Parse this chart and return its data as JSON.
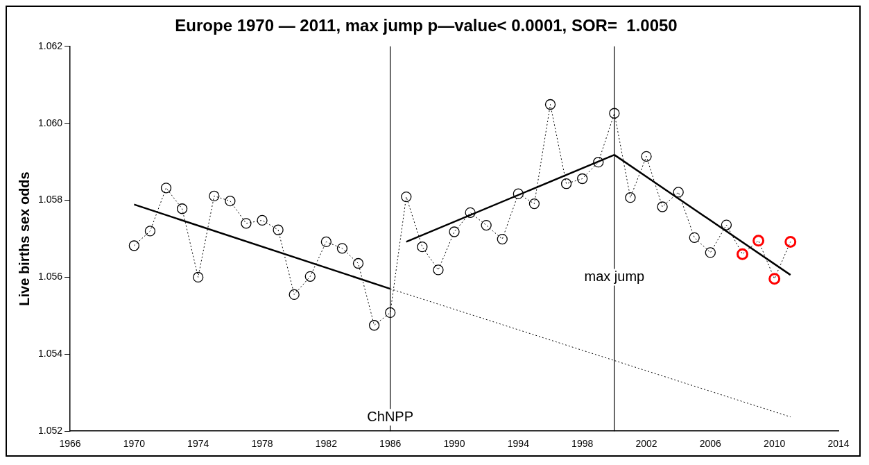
{
  "chart_data": {
    "type": "line",
    "title": "Europe 1970 — 2011, max jump p—value< 0.0001, SOR=  1.0050",
    "ylabel": "Live births sex odds",
    "xlim": [
      1966,
      2014
    ],
    "xticks": [
      1966,
      1970,
      1974,
      1978,
      1982,
      1986,
      1990,
      1994,
      1998,
      2002,
      2006,
      2010,
      2014
    ],
    "ylim": [
      1.052,
      1.062
    ],
    "yticks": [
      {
        "value": 1.052,
        "label": "1.052"
      },
      {
        "value": 1.054,
        "label": "1.054"
      },
      {
        "value": 1.056,
        "label": "1.056"
      },
      {
        "value": 1.058,
        "label": "1.058"
      },
      {
        "value": 1.06,
        "label": "1.060"
      },
      {
        "value": 1.062,
        "label": "1.062"
      }
    ],
    "grid": false,
    "legend": false,
    "ref_lines": [
      {
        "axis": "x",
        "value": 1986,
        "label": "ChNPP",
        "color": "#000000"
      },
      {
        "axis": "x",
        "value": 2000,
        "label": "max jump",
        "color": "#000000"
      }
    ],
    "series": [
      {
        "type": "line",
        "line_style": "dotted",
        "marker": "circle",
        "color": "#000000",
        "x": [
          1970,
          1971,
          1972,
          1973,
          1974,
          1975,
          1976,
          1977,
          1978,
          1979,
          1980,
          1981,
          1982,
          1983,
          1984,
          1985,
          1986,
          1987,
          1988,
          1989,
          1990,
          1991,
          1992,
          1993,
          1994,
          1995,
          1996,
          1997,
          1998,
          1999,
          2000,
          2001,
          2002,
          2003,
          2004,
          2005,
          2006,
          2007,
          2008,
          2009,
          2010,
          2011
        ],
        "values": [
          1.05682,
          1.0572,
          1.05832,
          1.05778,
          1.056,
          1.05811,
          1.05798,
          1.0574,
          1.05748,
          1.05723,
          1.05555,
          1.05602,
          1.05692,
          1.05675,
          1.05636,
          1.05475,
          1.05508,
          1.05809,
          1.05679,
          1.05619,
          1.05718,
          1.05768,
          1.05735,
          1.05699,
          1.05817,
          1.05791,
          1.06049,
          1.05843,
          1.05856,
          1.05899,
          1.06026,
          1.05807,
          1.05914,
          1.05783,
          1.05821,
          1.05703,
          1.05664,
          1.05736,
          1.0566,
          1.05695,
          1.05596,
          1.05692
        ],
        "colors": [
          "#000000",
          "#000000",
          "#000000",
          "#000000",
          "#000000",
          "#000000",
          "#000000",
          "#000000",
          "#000000",
          "#000000",
          "#000000",
          "#000000",
          "#000000",
          "#000000",
          "#000000",
          "#000000",
          "#000000",
          "#000000",
          "#000000",
          "#000000",
          "#000000",
          "#000000",
          "#000000",
          "#000000",
          "#000000",
          "#000000",
          "#000000",
          "#000000",
          "#000000",
          "#000000",
          "#000000",
          "#000000",
          "#000000",
          "#000000",
          "#000000",
          "#000000",
          "#000000",
          "#000000",
          "#ff0000",
          "#ff0000",
          "#ff0000",
          "#ff0000"
        ]
      },
      {
        "type": "line",
        "line_style": "solid",
        "marker": "none",
        "color": "#000000",
        "x": [
          1970,
          1986
        ],
        "values": [
          1.05789,
          1.0557
        ]
      },
      {
        "type": "line",
        "line_style": "solid",
        "marker": "none",
        "color": "#000000",
        "x": [
          1987,
          2000
        ],
        "values": [
          1.05692,
          1.05918
        ]
      },
      {
        "type": "line",
        "line_style": "solid",
        "marker": "none",
        "color": "#000000",
        "x": [
          2000,
          2011
        ],
        "values": [
          1.05918,
          1.05606
        ]
      },
      {
        "type": "line",
        "line_style": "dotted",
        "marker": "none",
        "color": "#000000",
        "x": [
          1986,
          2011
        ],
        "values": [
          1.0557,
          1.05237
        ]
      }
    ]
  }
}
